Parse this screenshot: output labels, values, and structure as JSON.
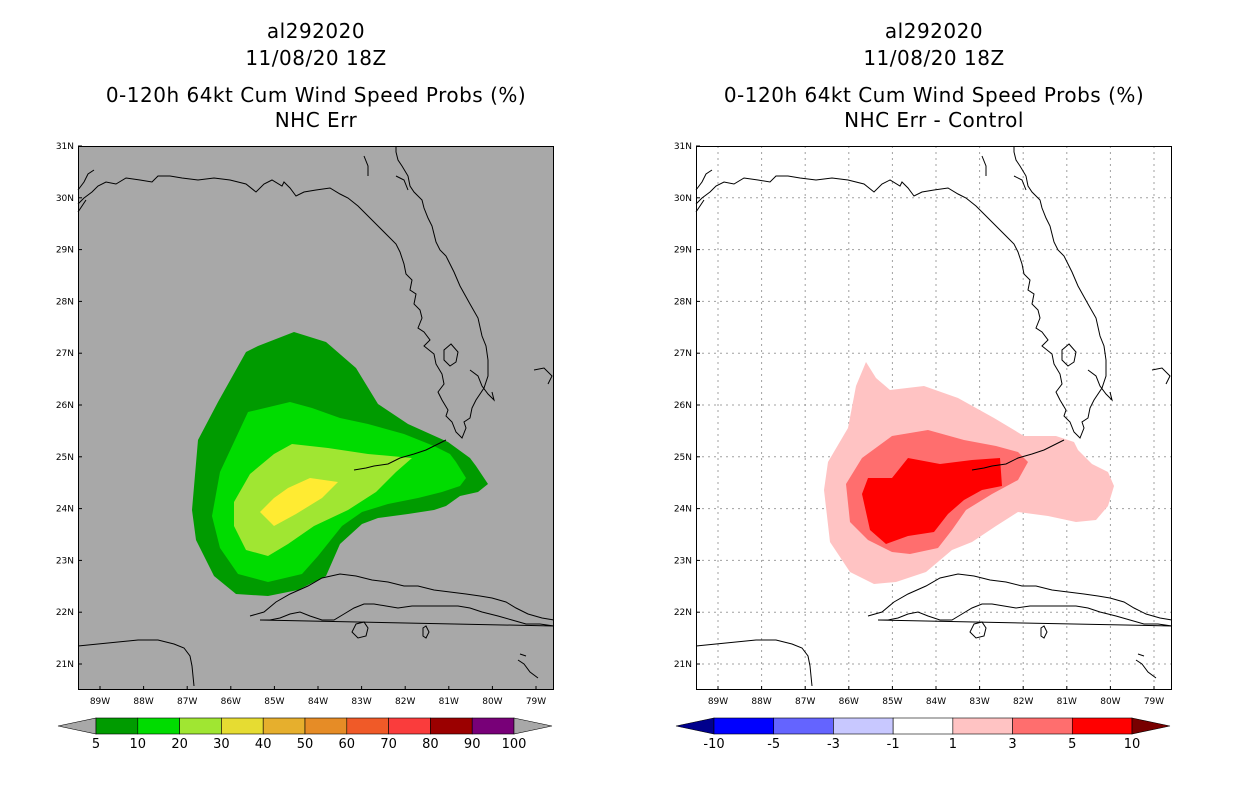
{
  "left_panel": {
    "title_lines": [
      "al292020",
      "11/08/20 18Z",
      "0-120h 64kt Cum Wind Speed Probs (%)",
      "NHC Err"
    ],
    "background_color": "#a8a8a8",
    "colorbar": {
      "labels": [
        "5",
        "10",
        "20",
        "30",
        "40",
        "50",
        "60",
        "70",
        "80",
        "90",
        "100"
      ],
      "colors": [
        "#a8a8a8",
        "#009b00",
        "#00dc00",
        "#a0e632",
        "#e6dc32",
        "#e6af2d",
        "#e68c26",
        "#f05a28",
        "#fa3c3c",
        "#9b0000",
        "#780078",
        "#a8a8a8"
      ]
    }
  },
  "right_panel": {
    "title_lines": [
      "al292020",
      "11/08/20 18Z",
      "0-120h 64kt Cum Wind Speed Probs (%)",
      "NHC Err - Control"
    ],
    "background_color": "#ffffff",
    "colorbar": {
      "labels": [
        "-10",
        "-5",
        "-3",
        "-1",
        "1",
        "3",
        "5",
        "10"
      ],
      "colors": [
        "#00008c",
        "#0000ff",
        "#6464ff",
        "#c8c8ff",
        "#ffffff",
        "#ffc3c3",
        "#ff6e6e",
        "#ff0000",
        "#780000"
      ]
    }
  },
  "axes": {
    "lat_labels": [
      "31N",
      "30N",
      "29N",
      "28N",
      "27N",
      "26N",
      "25N",
      "24N",
      "23N",
      "22N",
      "21N"
    ],
    "lon_labels": [
      "89W",
      "88W",
      "87W",
      "86W",
      "85W",
      "84W",
      "83W",
      "82W",
      "81W",
      "80W",
      "79W"
    ]
  },
  "chart_data": [
    {
      "type": "heatmap",
      "title": "0-120h 64kt Cum Wind Speed Probs (%) NHC Err",
      "subtitle": "al292020 11/08/20 18Z",
      "lat_range": [
        20.5,
        31
      ],
      "lon_range": [
        -89.5,
        -78.6
      ],
      "contour_levels": [
        5,
        10,
        20,
        30,
        40
      ],
      "max_value_region": {
        "lat": 24.2,
        "lon": -84.7,
        "range": "30-40%"
      }
    },
    {
      "type": "heatmap",
      "title": "0-120h 64kt Cum Wind Speed Probs (%) NHC Err - Control",
      "subtitle": "al292020 11/08/20 18Z",
      "lat_range": [
        20.5,
        31
      ],
      "lon_range": [
        -89.5,
        -78.6
      ],
      "contour_levels": [
        1,
        3,
        5
      ],
      "max_value_region": {
        "lat": 24.3,
        "lon": -84.0,
        "range": "5-10"
      }
    }
  ]
}
